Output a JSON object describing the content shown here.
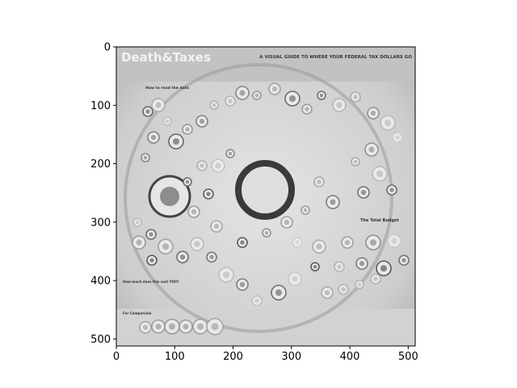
{
  "chart_data": {
    "type": "image",
    "xlim": [
      0,
      512
    ],
    "ylim": [
      512,
      0
    ],
    "y_inverted": true,
    "grid": false,
    "x_ticks": [
      0,
      100,
      200,
      300,
      400,
      500
    ],
    "y_ticks": [
      0,
      100,
      200,
      300,
      400,
      500
    ],
    "colormap": "gray",
    "image_content": {
      "poster_title": "Death&Taxes",
      "poster_subtitle": "A VISUAL GUIDE TO WHERE YOUR FEDERAL TAX DOLLARS GO",
      "section_read": "How to read the data",
      "section_total": "The Total Budget",
      "section_cost": "How much does this cost YOU?",
      "section_comparison": "For Comparison"
    }
  },
  "colors": {
    "axis": "#000000",
    "poster_background": "#cfcfcf"
  }
}
